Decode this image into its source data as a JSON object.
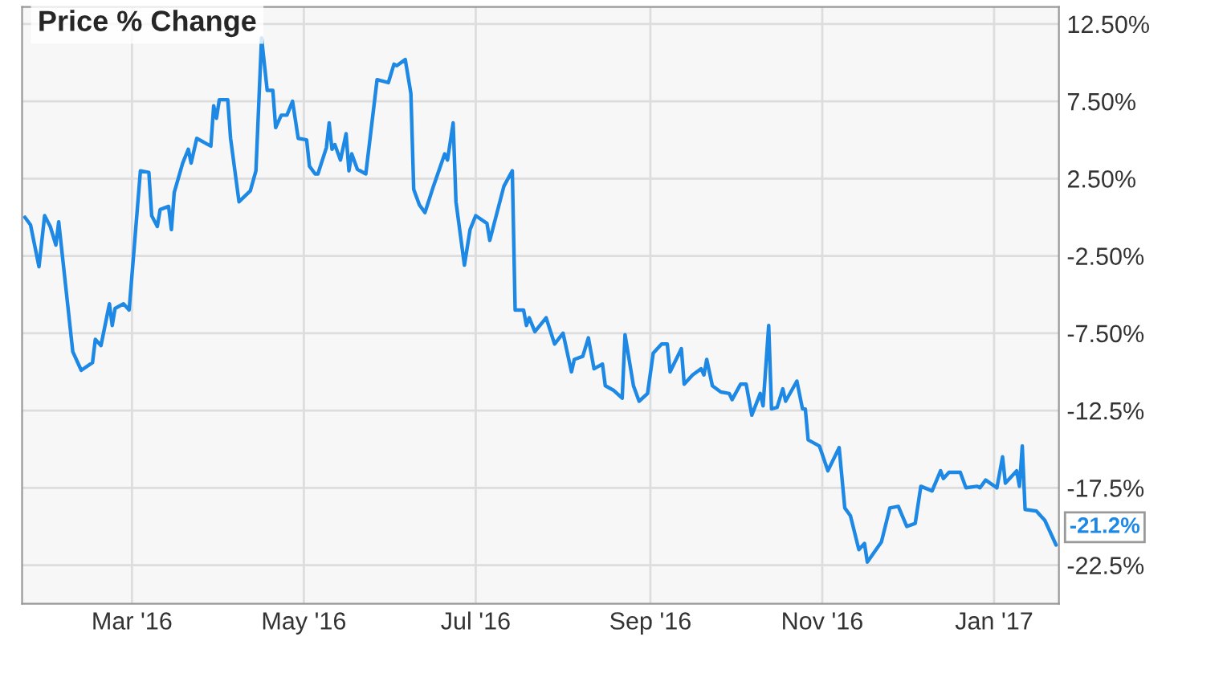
{
  "chart_data": {
    "type": "line",
    "title": "Price % Change",
    "x": [
      "2016-01-23",
      "2016-01-25",
      "2016-01-27",
      "2016-01-28",
      "2016-01-30",
      "2016-02-01",
      "2016-02-03",
      "2016-02-04",
      "2016-02-09",
      "2016-02-12",
      "2016-02-16",
      "2016-02-17",
      "2016-02-19",
      "2016-02-22",
      "2016-02-23",
      "2016-02-24",
      "2016-02-27",
      "2016-02-29",
      "2016-03-04",
      "2016-03-07",
      "2016-03-08",
      "2016-03-10",
      "2016-03-11",
      "2016-03-14",
      "2016-03-15",
      "2016-03-16",
      "2016-03-19",
      "2016-03-21",
      "2016-03-22",
      "2016-03-24",
      "2016-03-29",
      "2016-03-30",
      "2016-03-31",
      "2016-04-01",
      "2016-04-04",
      "2016-04-05",
      "2016-04-08",
      "2016-04-12",
      "2016-04-14",
      "2016-04-16",
      "2016-04-18",
      "2016-04-20",
      "2016-04-21",
      "2016-04-23",
      "2016-04-25",
      "2016-04-27",
      "2016-04-29",
      "2016-05-02",
      "2016-05-03",
      "2016-05-05",
      "2016-05-06",
      "2016-05-09",
      "2016-05-10",
      "2016-05-11",
      "2016-05-12",
      "2016-05-14",
      "2016-05-16",
      "2016-05-17",
      "2016-05-18",
      "2016-05-20",
      "2016-05-23",
      "2016-05-27",
      "2016-05-31",
      "2016-06-02",
      "2016-06-03",
      "2016-06-06",
      "2016-06-08",
      "2016-06-09",
      "2016-06-11",
      "2016-06-13",
      "2016-06-16",
      "2016-06-20",
      "2016-06-21",
      "2016-06-23",
      "2016-06-24",
      "2016-06-27",
      "2016-06-29",
      "2016-07-01",
      "2016-07-05",
      "2016-07-06",
      "2016-07-11",
      "2016-07-14",
      "2016-07-15",
      "2016-07-18",
      "2016-07-19",
      "2016-07-20",
      "2016-07-22",
      "2016-07-26",
      "2016-07-29",
      "2016-08-01",
      "2016-08-04",
      "2016-08-05",
      "2016-08-08",
      "2016-08-10",
      "2016-08-12",
      "2016-08-15",
      "2016-08-16",
      "2016-08-19",
      "2016-08-22",
      "2016-08-23",
      "2016-08-26",
      "2016-08-28",
      "2016-08-31",
      "2016-09-02",
      "2016-09-05",
      "2016-09-07",
      "2016-09-08",
      "2016-09-12",
      "2016-09-13",
      "2016-09-16",
      "2016-09-19",
      "2016-09-20",
      "2016-09-21",
      "2016-09-23",
      "2016-09-26",
      "2016-09-29",
      "2016-09-30",
      "2016-10-03",
      "2016-10-05",
      "2016-10-07",
      "2016-10-10",
      "2016-10-11",
      "2016-10-13",
      "2016-10-14",
      "2016-10-16",
      "2016-10-18",
      "2016-10-19",
      "2016-10-23",
      "2016-10-25",
      "2016-10-26",
      "2016-10-27",
      "2016-10-31",
      "2016-11-03",
      "2016-11-07",
      "2016-11-09",
      "2016-11-11",
      "2016-11-14",
      "2016-11-16",
      "2016-11-17",
      "2016-11-22",
      "2016-11-25",
      "2016-11-28",
      "2016-12-01",
      "2016-12-04",
      "2016-12-06",
      "2016-12-10",
      "2016-12-13",
      "2016-12-14",
      "2016-12-16",
      "2016-12-20",
      "2016-12-22",
      "2016-12-26",
      "2016-12-27",
      "2016-12-29",
      "2017-01-02",
      "2017-01-04",
      "2017-01-05",
      "2017-01-09",
      "2017-01-10",
      "2017-01-11",
      "2017-01-12",
      "2017-01-16",
      "2017-01-19",
      "2017-01-23"
    ],
    "series": [
      {
        "color": "#1e88e5",
        "values": [
          0,
          -0.5,
          -2.3,
          -3.2,
          0.1,
          -0.6,
          -1.8,
          -0.3,
          -8.7,
          -9.9,
          -9.4,
          -7.9,
          -8.3,
          -5.6,
          -7.0,
          -5.9,
          -5.6,
          -6.0,
          3.0,
          2.9,
          0.1,
          -0.6,
          0.5,
          0.7,
          -0.8,
          1.6,
          3.5,
          4.4,
          3.5,
          5.1,
          4.6,
          7.2,
          6.4,
          7.6,
          7.6,
          5.1,
          1.0,
          1.7,
          3.0,
          11.6,
          8.2,
          8.2,
          5.8,
          6.6,
          6.6,
          7.5,
          5.1,
          5.0,
          3.3,
          2.8,
          2.8,
          4.5,
          6.1,
          4.4,
          4.7,
          3.7,
          5.4,
          3.0,
          4.1,
          3.1,
          2.8,
          8.9,
          8.7,
          9.9,
          9.8,
          10.2,
          8.0,
          1.8,
          0.8,
          0.3,
          2.0,
          4.1,
          3.7,
          6.1,
          1.0,
          -3.1,
          -0.8,
          0.1,
          -0.4,
          -1.5,
          2.0,
          3.0,
          -6.0,
          -6.0,
          -7.0,
          -6.5,
          -7.4,
          -6.5,
          -8.2,
          -7.5,
          -10.0,
          -9.2,
          -9.0,
          -7.8,
          -9.8,
          -9.5,
          -10.9,
          -11.2,
          -11.7,
          -7.6,
          -10.9,
          -11.9,
          -11.4,
          -8.8,
          -8.2,
          -8.2,
          -10.0,
          -8.5,
          -10.8,
          -10.2,
          -9.8,
          -10.2,
          -9.2,
          -10.9,
          -11.3,
          -11.4,
          -11.8,
          -10.8,
          -10.8,
          -12.8,
          -11.4,
          -12.2,
          -7.0,
          -12.4,
          -12.3,
          -11.1,
          -11.9,
          -10.6,
          -12.4,
          -12.4,
          -14.4,
          -14.8,
          -16.4,
          -14.9,
          -18.8,
          -19.3,
          -21.5,
          -21.1,
          -22.3,
          -21.0,
          -18.8,
          -18.7,
          -20.0,
          -19.8,
          -17.4,
          -17.7,
          -16.4,
          -16.9,
          -16.5,
          -16.5,
          -17.5,
          -17.4,
          -17.5,
          -17.0,
          -17.5,
          -15.5,
          -17.2,
          -16.4,
          -17.4,
          -14.8,
          -18.9,
          -19.0,
          -19.6,
          -21.2
        ]
      }
    ],
    "annotations": [
      {
        "text": "-21.2%",
        "x": "2017-01-23",
        "y": -21.2
      }
    ],
    "xlim": [
      "2016-01-22",
      "2017-01-24"
    ],
    "xticks": [
      {
        "value": "2016-03-01",
        "label": "Mar '16"
      },
      {
        "value": "2016-05-01",
        "label": "May '16"
      },
      {
        "value": "2016-07-01",
        "label": "Jul '16"
      },
      {
        "value": "2016-09-01",
        "label": "Sep '16"
      },
      {
        "value": "2016-11-01",
        "label": "Nov '16"
      },
      {
        "value": "2017-01-01",
        "label": "Jan '17"
      }
    ],
    "ylim": [
      -25,
      13.6
    ],
    "yticks": [
      {
        "value": 12.5,
        "label": "12.50%"
      },
      {
        "value": 7.5,
        "label": "7.50%"
      },
      {
        "value": 2.5,
        "label": "2.50%"
      },
      {
        "value": -2.5,
        "label": "-2.50%"
      },
      {
        "value": -7.5,
        "label": "-7.50%"
      },
      {
        "value": -12.5,
        "label": "-12.5%"
      },
      {
        "value": -17.5,
        "label": "-17.5%"
      },
      {
        "value": -22.5,
        "label": "-22.5%"
      }
    ],
    "grid": true,
    "marker": "none",
    "line_style": "solid",
    "legend": false
  }
}
